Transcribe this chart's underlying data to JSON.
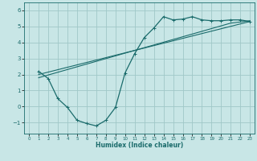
{
  "title": "",
  "xlabel": "Humidex (Indice chaleur)",
  "xlim": [
    -0.5,
    23.5
  ],
  "ylim": [
    -1.7,
    6.5
  ],
  "yticks": [
    -1,
    0,
    1,
    2,
    3,
    4,
    5,
    6
  ],
  "xticks": [
    0,
    1,
    2,
    3,
    4,
    5,
    6,
    7,
    8,
    9,
    10,
    11,
    12,
    13,
    14,
    15,
    16,
    17,
    18,
    19,
    20,
    21,
    22,
    23
  ],
  "background_color": "#c8e6e6",
  "grid_color": "#a0c8c8",
  "line_color": "#1a6b6b",
  "line1_x": [
    1,
    2,
    3,
    4,
    5,
    6,
    7,
    8,
    9,
    10,
    11,
    12,
    13,
    14,
    15,
    16,
    17,
    18,
    19,
    20,
    21,
    22,
    23
  ],
  "line1_y": [
    2.2,
    1.75,
    0.5,
    -0.05,
    -0.85,
    -1.05,
    -1.2,
    -0.85,
    -0.05,
    2.1,
    3.3,
    4.3,
    4.9,
    5.6,
    5.4,
    5.45,
    5.6,
    5.4,
    5.35,
    5.35,
    5.4,
    5.4,
    5.3
  ],
  "line2_x": [
    1,
    2,
    3,
    4,
    5,
    6,
    7,
    8,
    9,
    10,
    11,
    12,
    13,
    14,
    15,
    16,
    17,
    18,
    19,
    20,
    21,
    22,
    23
  ],
  "line2_y": [
    2.0,
    2.15,
    2.3,
    2.45,
    2.6,
    2.75,
    2.9,
    3.05,
    3.2,
    3.35,
    3.5,
    3.65,
    3.8,
    3.95,
    4.1,
    4.25,
    4.4,
    4.55,
    4.7,
    4.85,
    5.0,
    5.15,
    5.3
  ],
  "line3_x": [
    1,
    2,
    3,
    4,
    5,
    6,
    7,
    8,
    9,
    10,
    11,
    12,
    13,
    14,
    15,
    16,
    17,
    18,
    19,
    20,
    21,
    22,
    23
  ],
  "line3_y": [
    1.8,
    1.97,
    2.14,
    2.31,
    2.48,
    2.65,
    2.82,
    2.99,
    3.16,
    3.33,
    3.5,
    3.67,
    3.84,
    4.01,
    4.18,
    4.35,
    4.52,
    4.69,
    4.86,
    5.03,
    5.2,
    5.27,
    5.35
  ]
}
